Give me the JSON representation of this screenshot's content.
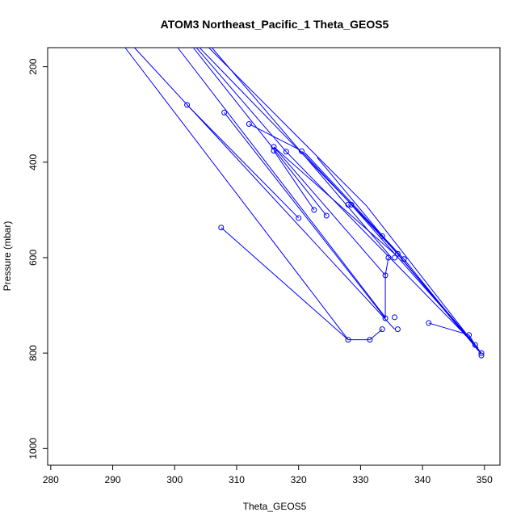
{
  "chart_data": {
    "type": "line",
    "title": "ATOM3 Northeast_Pacific_1 Theta_GEOS5",
    "xlabel": "Theta_GEOS5",
    "ylabel": "Pressure (mbar)",
    "xlim": [
      279.5,
      352.5
    ],
    "ylim": [
      1035,
      160
    ],
    "y_reversed": true,
    "xticks": [
      280,
      290,
      300,
      310,
      320,
      330,
      340,
      350
    ],
    "yticks": [
      200,
      400,
      600,
      800,
      1000
    ],
    "grid": false,
    "color": "#0000ff",
    "segments": [
      [
        [
          292.0,
          160
        ],
        [
          328.0,
          772
        ],
        [
          331.5,
          772
        ],
        [
          333.5,
          750
        ]
      ],
      [
        [
          293.5,
          160
        ],
        [
          335.5,
          750
        ]
      ],
      [
        [
          302.0,
          280
        ],
        [
          320.0,
          517
        ]
      ],
      [
        [
          308.0,
          296
        ],
        [
          334.0,
          727
        ]
      ],
      [
        [
          312.0,
          320
        ],
        [
          320.0,
          373
        ]
      ],
      [
        [
          316.0,
          368
        ],
        [
          336.0,
          598
        ]
      ],
      [
        [
          316.0,
          376
        ],
        [
          322.5,
          500
        ]
      ],
      [
        [
          307.5,
          537
        ],
        [
          328.0,
          772
        ]
      ],
      [
        [
          303.5,
          160
        ],
        [
          318.0,
          378
        ]
      ],
      [
        [
          304.0,
          160
        ],
        [
          333.5,
          555
        ]
      ],
      [
        [
          305.5,
          160
        ],
        [
          331.0,
          492
        ],
        [
          349.5,
          800
        ]
      ],
      [
        [
          303.0,
          160
        ],
        [
          324.5,
          512
        ]
      ],
      [
        [
          300.5,
          160
        ],
        [
          334.0,
          725
        ]
      ],
      [
        [
          306.0,
          160
        ],
        [
          335.0,
          600
        ]
      ],
      [
        [
          320.5,
          377
        ],
        [
          336.0,
          592
        ]
      ],
      [
        [
          321.0,
          380
        ],
        [
          337.0,
          603
        ]
      ],
      [
        [
          323.0,
          390
        ],
        [
          347.0,
          764
        ]
      ],
      [
        [
          318.0,
          378
        ],
        [
          348.5,
          783
        ]
      ],
      [
        [
          328.5,
          489
        ],
        [
          349.0,
          790
        ]
      ],
      [
        [
          333.5,
          555
        ],
        [
          348.0,
          775
        ]
      ],
      [
        [
          336.0,
          592
        ],
        [
          349.5,
          802
        ]
      ],
      [
        [
          337.0,
          603
        ],
        [
          349.0,
          795
        ]
      ],
      [
        [
          334.5,
          600
        ],
        [
          334.0,
          637
        ],
        [
          334.0,
          727
        ]
      ],
      [
        [
          341.0,
          737
        ],
        [
          347.5,
          762
        ],
        [
          348.5,
          783
        ]
      ],
      [
        [
          316.0,
          368
        ],
        [
          334.0,
          637
        ]
      ]
    ],
    "points": [
      [
        302.0,
        280
      ],
      [
        308.0,
        296
      ],
      [
        312.0,
        320
      ],
      [
        316.0,
        368
      ],
      [
        316.0,
        376
      ],
      [
        318.0,
        378
      ],
      [
        320.5,
        377
      ],
      [
        322.5,
        500
      ],
      [
        324.5,
        512
      ],
      [
        320.0,
        517
      ],
      [
        328.0,
        489
      ],
      [
        328.5,
        489
      ],
      [
        333.5,
        555
      ],
      [
        336.0,
        592
      ],
      [
        334.5,
        600
      ],
      [
        335.5,
        600
      ],
      [
        337.0,
        603
      ],
      [
        334.0,
        637
      ],
      [
        307.5,
        537
      ],
      [
        334.0,
        727
      ],
      [
        335.5,
        725
      ],
      [
        333.5,
        750
      ],
      [
        336.0,
        750
      ],
      [
        328.0,
        772
      ],
      [
        331.5,
        772
      ],
      [
        341.0,
        737
      ],
      [
        347.5,
        762
      ],
      [
        348.5,
        783
      ],
      [
        349.5,
        800
      ],
      [
        349.5,
        805
      ]
    ]
  }
}
